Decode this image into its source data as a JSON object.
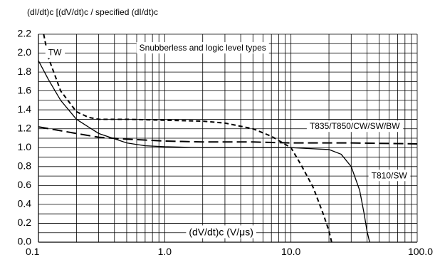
{
  "chart_data": {
    "type": "line",
    "title": "(dI/dt)c [(dV/dt)c / specified (dI/dt)c",
    "xlabel": "(dV/dt)c (V/μs)",
    "ylabel": "",
    "xscale": "log",
    "xlim": [
      0.1,
      100.0
    ],
    "ylim": [
      0.0,
      2.2
    ],
    "grid": true,
    "x_tick_labels": [
      "0.1",
      "1.0",
      "10.0",
      "100.0"
    ],
    "x_ticks": [
      0.1,
      1.0,
      10.0,
      100.0
    ],
    "y_tick_labels": [
      "0.0",
      "0.2",
      "0.4",
      "0.6",
      "0.8",
      "1.0",
      "1.2",
      "1.4",
      "1.6",
      "1.8",
      "2.0",
      "2.2"
    ],
    "y_ticks": [
      0.0,
      0.2,
      0.4,
      0.6,
      0.8,
      1.0,
      1.2,
      1.4,
      1.6,
      1.8,
      2.0,
      2.2
    ],
    "series": [
      {
        "name": "T810/SW",
        "style": "solid",
        "color": "#000000",
        "x": [
          0.1,
          0.12,
          0.15,
          0.2,
          0.3,
          0.5,
          0.7,
          1.0,
          2.0,
          5.0,
          10.0,
          20.0,
          25.0,
          30.0,
          35.0,
          38.0,
          40.0,
          42.0
        ],
        "y": [
          1.92,
          1.72,
          1.5,
          1.3,
          1.15,
          1.05,
          1.02,
          1.01,
          1.0,
          1.0,
          1.0,
          0.98,
          0.93,
          0.8,
          0.55,
          0.3,
          0.12,
          0.0
        ]
      },
      {
        "name": "TW",
        "style": "dashed",
        "color": "#000000",
        "x": [
          0.11,
          0.12,
          0.15,
          0.2,
          0.25,
          0.3,
          0.5,
          1.0,
          2.0,
          3.0,
          5.0,
          7.0,
          10.0,
          12.0,
          15.0,
          18.0,
          20.0,
          21.0
        ],
        "y": [
          2.2,
          1.95,
          1.6,
          1.38,
          1.32,
          1.3,
          1.3,
          1.29,
          1.28,
          1.26,
          1.2,
          1.12,
          1.0,
          0.82,
          0.58,
          0.3,
          0.12,
          0.0
        ]
      },
      {
        "name": "T835/T850/CW/SW/BW",
        "style": "long-dash",
        "color": "#000000",
        "x": [
          0.1,
          0.2,
          0.3,
          0.5,
          1.0,
          2.0,
          5.0,
          10.0,
          30.0,
          100.0
        ],
        "y": [
          1.22,
          1.15,
          1.11,
          1.09,
          1.07,
          1.06,
          1.06,
          1.05,
          1.05,
          1.04
        ]
      }
    ],
    "annotations": [
      {
        "text": "TW",
        "x": 0.135,
        "y": 2.0
      },
      {
        "text": "Snubberless and logic level types",
        "x": 2.0,
        "y": 2.05
      },
      {
        "text": "T835/T850/CW/SW/BW",
        "x": 32.0,
        "y": 1.22
      },
      {
        "text": "T810/SW",
        "x": 60.0,
        "y": 0.7
      },
      {
        "text": "(dV/dt)c (V/μs)",
        "x": 2.8,
        "y": 0.1
      }
    ]
  }
}
